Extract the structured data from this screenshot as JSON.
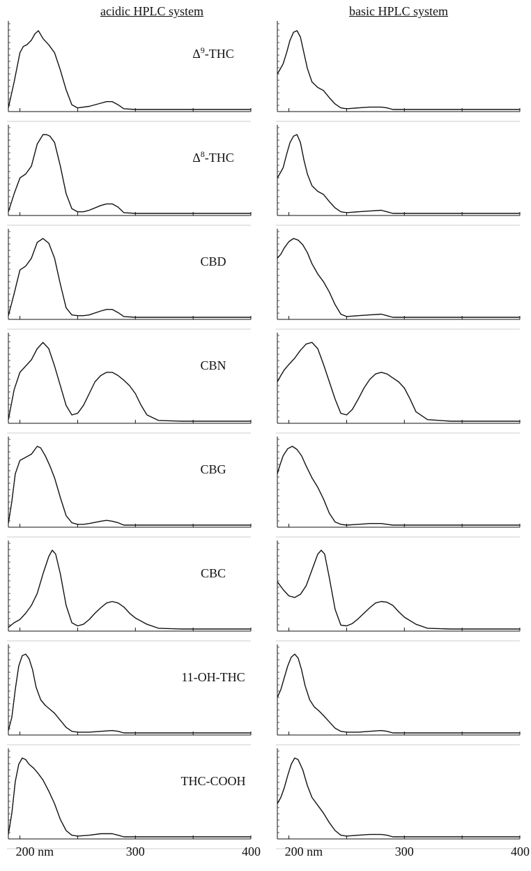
{
  "columns": [
    {
      "title": "acidic HPLC system"
    },
    {
      "title": "basic HPLC system"
    }
  ],
  "x_axis": {
    "tick_labels": [
      "200 nm",
      "300",
      "400"
    ],
    "major_ticks": [
      200,
      250,
      300,
      350,
      400
    ]
  },
  "chart_data": [
    {
      "type": "line",
      "panel": "acidic",
      "label_prefix": "Δ",
      "label_sup": "9",
      "label_suffix": "-THC",
      "x": [
        190,
        195,
        200,
        203,
        206,
        210,
        213,
        216,
        220,
        225,
        230,
        235,
        240,
        245,
        250,
        260,
        270,
        275,
        280,
        285,
        290,
        300,
        320,
        340,
        360,
        380,
        400
      ],
      "y": [
        0.02,
        0.35,
        0.72,
        0.8,
        0.82,
        0.88,
        0.96,
        1.0,
        0.9,
        0.82,
        0.72,
        0.5,
        0.25,
        0.06,
        0.02,
        0.04,
        0.08,
        0.1,
        0.1,
        0.06,
        0.01,
        0.0,
        0.0,
        0.0,
        0.0,
        0.0,
        0.0
      ]
    },
    {
      "type": "line",
      "panel": "basic",
      "label_prefix": "",
      "label_sup": "",
      "label_suffix": "",
      "x": [
        190,
        192,
        195,
        198,
        201,
        204,
        207,
        210,
        213,
        216,
        220,
        225,
        230,
        235,
        240,
        245,
        250,
        260,
        270,
        280,
        285,
        290,
        300,
        320,
        340,
        360,
        380,
        400
      ],
      "y": [
        0.45,
        0.5,
        0.58,
        0.72,
        0.88,
        0.98,
        1.0,
        0.92,
        0.72,
        0.52,
        0.35,
        0.28,
        0.24,
        0.15,
        0.07,
        0.02,
        0.01,
        0.02,
        0.03,
        0.03,
        0.02,
        0.0,
        0.0,
        0.0,
        0.0,
        0.0,
        0.0,
        0.0
      ]
    },
    {
      "type": "line",
      "panel": "acidic",
      "label_prefix": "Δ",
      "label_sup": "8",
      "label_suffix": "-THC",
      "x": [
        190,
        195,
        200,
        205,
        210,
        215,
        220,
        223,
        226,
        230,
        235,
        240,
        245,
        250,
        255,
        260,
        270,
        275,
        280,
        285,
        290,
        300,
        320,
        340,
        360,
        380,
        400
      ],
      "y": [
        0.02,
        0.25,
        0.45,
        0.5,
        0.6,
        0.88,
        1.0,
        1.0,
        0.98,
        0.9,
        0.6,
        0.25,
        0.06,
        0.02,
        0.02,
        0.04,
        0.1,
        0.12,
        0.12,
        0.08,
        0.01,
        0.0,
        0.0,
        0.0,
        0.0,
        0.0,
        0.0
      ]
    },
    {
      "type": "line",
      "panel": "basic",
      "label_prefix": "",
      "label_sup": "",
      "label_suffix": "",
      "x": [
        190,
        192,
        195,
        198,
        201,
        204,
        207,
        210,
        213,
        216,
        220,
        225,
        230,
        235,
        240,
        245,
        250,
        260,
        270,
        280,
        285,
        290,
        300,
        320,
        340,
        360,
        380,
        400
      ],
      "y": [
        0.45,
        0.5,
        0.58,
        0.75,
        0.9,
        0.98,
        1.0,
        0.9,
        0.68,
        0.5,
        0.35,
        0.28,
        0.24,
        0.15,
        0.07,
        0.02,
        0.01,
        0.02,
        0.03,
        0.04,
        0.02,
        0.0,
        0.0,
        0.0,
        0.0,
        0.0,
        0.0,
        0.0
      ]
    },
    {
      "type": "line",
      "panel": "acidic",
      "label_prefix": "",
      "label_sup": "",
      "label_suffix": "CBD",
      "x": [
        190,
        195,
        200,
        205,
        210,
        215,
        220,
        225,
        230,
        235,
        240,
        245,
        250,
        255,
        260,
        270,
        275,
        280,
        285,
        290,
        300,
        320,
        340,
        360,
        380,
        400
      ],
      "y": [
        0.02,
        0.3,
        0.6,
        0.65,
        0.75,
        0.95,
        1.0,
        0.94,
        0.75,
        0.42,
        0.12,
        0.03,
        0.02,
        0.02,
        0.03,
        0.08,
        0.1,
        0.1,
        0.06,
        0.01,
        0.0,
        0.0,
        0.0,
        0.0,
        0.0,
        0.0
      ]
    },
    {
      "type": "line",
      "panel": "basic",
      "label_prefix": "",
      "label_sup": "",
      "label_suffix": "",
      "x": [
        190,
        193,
        196,
        200,
        204,
        208,
        212,
        216,
        220,
        225,
        230,
        235,
        240,
        245,
        250,
        260,
        270,
        280,
        285,
        290,
        300,
        320,
        340,
        360,
        380,
        400
      ],
      "y": [
        0.75,
        0.8,
        0.88,
        0.96,
        1.0,
        0.98,
        0.92,
        0.82,
        0.68,
        0.55,
        0.45,
        0.32,
        0.16,
        0.04,
        0.01,
        0.02,
        0.03,
        0.04,
        0.02,
        0.0,
        0.0,
        0.0,
        0.0,
        0.0,
        0.0,
        0.0
      ]
    },
    {
      "type": "line",
      "panel": "acidic",
      "label_prefix": "",
      "label_sup": "",
      "label_suffix": "CBN",
      "x": [
        190,
        195,
        200,
        205,
        210,
        215,
        220,
        225,
        230,
        235,
        240,
        245,
        250,
        255,
        260,
        265,
        270,
        275,
        280,
        285,
        290,
        295,
        300,
        305,
        310,
        320,
        340,
        360,
        380,
        400
      ],
      "y": [
        0.02,
        0.4,
        0.62,
        0.7,
        0.78,
        0.92,
        1.0,
        0.92,
        0.7,
        0.45,
        0.2,
        0.08,
        0.1,
        0.2,
        0.35,
        0.5,
        0.58,
        0.62,
        0.62,
        0.58,
        0.52,
        0.45,
        0.35,
        0.2,
        0.08,
        0.01,
        0.0,
        0.0,
        0.0,
        0.0
      ]
    },
    {
      "type": "line",
      "panel": "basic",
      "label_prefix": "",
      "label_sup": "",
      "label_suffix": "",
      "x": [
        190,
        193,
        196,
        200,
        205,
        210,
        215,
        220,
        225,
        230,
        235,
        240,
        245,
        250,
        255,
        260,
        265,
        270,
        275,
        280,
        285,
        290,
        295,
        300,
        305,
        310,
        320,
        340,
        360,
        380,
        400
      ],
      "y": [
        0.5,
        0.58,
        0.65,
        0.72,
        0.8,
        0.9,
        0.98,
        1.0,
        0.92,
        0.72,
        0.5,
        0.28,
        0.1,
        0.08,
        0.15,
        0.28,
        0.42,
        0.53,
        0.6,
        0.62,
        0.6,
        0.55,
        0.5,
        0.42,
        0.28,
        0.12,
        0.02,
        0.0,
        0.0,
        0.0,
        0.0
      ]
    },
    {
      "type": "line",
      "panel": "acidic",
      "label_prefix": "",
      "label_sup": "",
      "label_suffix": "CBG",
      "x": [
        190,
        193,
        196,
        200,
        205,
        210,
        215,
        218,
        222,
        226,
        230,
        235,
        240,
        245,
        250,
        255,
        260,
        270,
        275,
        280,
        285,
        290,
        300,
        320,
        340,
        360,
        380,
        400
      ],
      "y": [
        0.02,
        0.3,
        0.65,
        0.82,
        0.86,
        0.9,
        1.0,
        0.98,
        0.88,
        0.75,
        0.6,
        0.35,
        0.12,
        0.03,
        0.01,
        0.01,
        0.02,
        0.05,
        0.06,
        0.05,
        0.03,
        0.0,
        0.0,
        0.0,
        0.0,
        0.0,
        0.0,
        0.0
      ]
    },
    {
      "type": "line",
      "panel": "basic",
      "label_prefix": "",
      "label_sup": "",
      "label_suffix": "",
      "x": [
        190,
        192,
        195,
        199,
        203,
        207,
        211,
        215,
        220,
        225,
        230,
        235,
        240,
        245,
        250,
        260,
        270,
        280,
        285,
        290,
        300,
        320,
        340,
        360,
        380,
        400
      ],
      "y": [
        0.65,
        0.75,
        0.88,
        0.97,
        1.0,
        0.96,
        0.88,
        0.75,
        0.6,
        0.48,
        0.33,
        0.15,
        0.04,
        0.01,
        0.0,
        0.01,
        0.02,
        0.02,
        0.01,
        0.0,
        0.0,
        0.0,
        0.0,
        0.0,
        0.0,
        0.0
      ]
    },
    {
      "type": "line",
      "panel": "acidic",
      "label_prefix": "",
      "label_sup": "",
      "label_suffix": "CBC",
      "x": [
        190,
        195,
        200,
        205,
        210,
        215,
        220,
        225,
        228,
        231,
        235,
        240,
        245,
        250,
        255,
        260,
        265,
        270,
        275,
        280,
        285,
        290,
        295,
        300,
        310,
        320,
        340,
        360,
        380,
        400
      ],
      "y": [
        0.02,
        0.08,
        0.12,
        0.2,
        0.3,
        0.45,
        0.7,
        0.92,
        1.0,
        0.95,
        0.7,
        0.3,
        0.08,
        0.04,
        0.06,
        0.12,
        0.2,
        0.27,
        0.33,
        0.35,
        0.33,
        0.28,
        0.2,
        0.14,
        0.06,
        0.01,
        0.0,
        0.0,
        0.0,
        0.0
      ]
    },
    {
      "type": "line",
      "panel": "basic",
      "label_prefix": "",
      "label_sup": "",
      "label_suffix": "",
      "x": [
        190,
        195,
        200,
        205,
        210,
        215,
        220,
        225,
        228,
        231,
        235,
        240,
        245,
        250,
        255,
        260,
        265,
        270,
        275,
        280,
        285,
        290,
        295,
        300,
        310,
        320,
        340,
        360,
        380,
        400
      ],
      "y": [
        0.6,
        0.5,
        0.42,
        0.4,
        0.44,
        0.55,
        0.75,
        0.95,
        1.0,
        0.95,
        0.65,
        0.25,
        0.05,
        0.04,
        0.07,
        0.13,
        0.2,
        0.27,
        0.33,
        0.35,
        0.34,
        0.3,
        0.22,
        0.15,
        0.06,
        0.01,
        0.0,
        0.0,
        0.0,
        0.0
      ]
    },
    {
      "type": "line",
      "panel": "acidic",
      "label_prefix": "",
      "label_sup": "",
      "label_suffix": "11-OH-THC",
      "x": [
        190,
        193,
        196,
        199,
        202,
        205,
        208,
        211,
        214,
        218,
        222,
        226,
        230,
        235,
        240,
        245,
        250,
        260,
        270,
        280,
        285,
        290,
        300,
        320,
        340,
        360,
        380,
        400
      ],
      "y": [
        0.03,
        0.2,
        0.55,
        0.85,
        0.98,
        1.0,
        0.94,
        0.8,
        0.58,
        0.42,
        0.35,
        0.3,
        0.25,
        0.16,
        0.07,
        0.02,
        0.01,
        0.01,
        0.02,
        0.03,
        0.02,
        0.0,
        0.0,
        0.0,
        0.0,
        0.0,
        0.0,
        0.0
      ]
    },
    {
      "type": "line",
      "panel": "basic",
      "label_prefix": "",
      "label_sup": "",
      "label_suffix": "",
      "x": [
        190,
        193,
        196,
        199,
        202,
        205,
        208,
        211,
        214,
        218,
        222,
        226,
        230,
        235,
        240,
        245,
        250,
        260,
        270,
        280,
        285,
        290,
        300,
        320,
        340,
        360,
        380,
        400
      ],
      "y": [
        0.45,
        0.55,
        0.7,
        0.85,
        0.96,
        1.0,
        0.95,
        0.8,
        0.6,
        0.42,
        0.33,
        0.28,
        0.22,
        0.14,
        0.06,
        0.02,
        0.01,
        0.01,
        0.02,
        0.03,
        0.02,
        0.0,
        0.0,
        0.0,
        0.0,
        0.0,
        0.0,
        0.0
      ]
    },
    {
      "type": "line",
      "panel": "acidic",
      "label_prefix": "",
      "label_sup": "",
      "label_suffix": "THC-COOH",
      "x": [
        190,
        193,
        196,
        199,
        202,
        205,
        208,
        212,
        216,
        220,
        225,
        230,
        235,
        240,
        245,
        250,
        260,
        270,
        280,
        285,
        290,
        300,
        320,
        340,
        360,
        380,
        400
      ],
      "y": [
        0.03,
        0.3,
        0.7,
        0.92,
        1.0,
        0.98,
        0.92,
        0.87,
        0.8,
        0.72,
        0.58,
        0.42,
        0.22,
        0.08,
        0.02,
        0.01,
        0.02,
        0.04,
        0.04,
        0.02,
        0.0,
        0.0,
        0.0,
        0.0,
        0.0,
        0.0,
        0.0
      ]
    },
    {
      "type": "line",
      "panel": "basic",
      "label_prefix": "",
      "label_sup": "",
      "label_suffix": "",
      "x": [
        190,
        193,
        196,
        199,
        202,
        205,
        208,
        212,
        216,
        220,
        225,
        230,
        235,
        240,
        245,
        250,
        260,
        270,
        280,
        285,
        290,
        300,
        320,
        340,
        360,
        380,
        400
      ],
      "y": [
        0.42,
        0.5,
        0.62,
        0.78,
        0.92,
        1.0,
        0.98,
        0.85,
        0.65,
        0.5,
        0.4,
        0.3,
        0.18,
        0.08,
        0.02,
        0.01,
        0.02,
        0.03,
        0.03,
        0.02,
        0.0,
        0.0,
        0.0,
        0.0,
        0.0,
        0.0,
        0.0
      ]
    }
  ]
}
